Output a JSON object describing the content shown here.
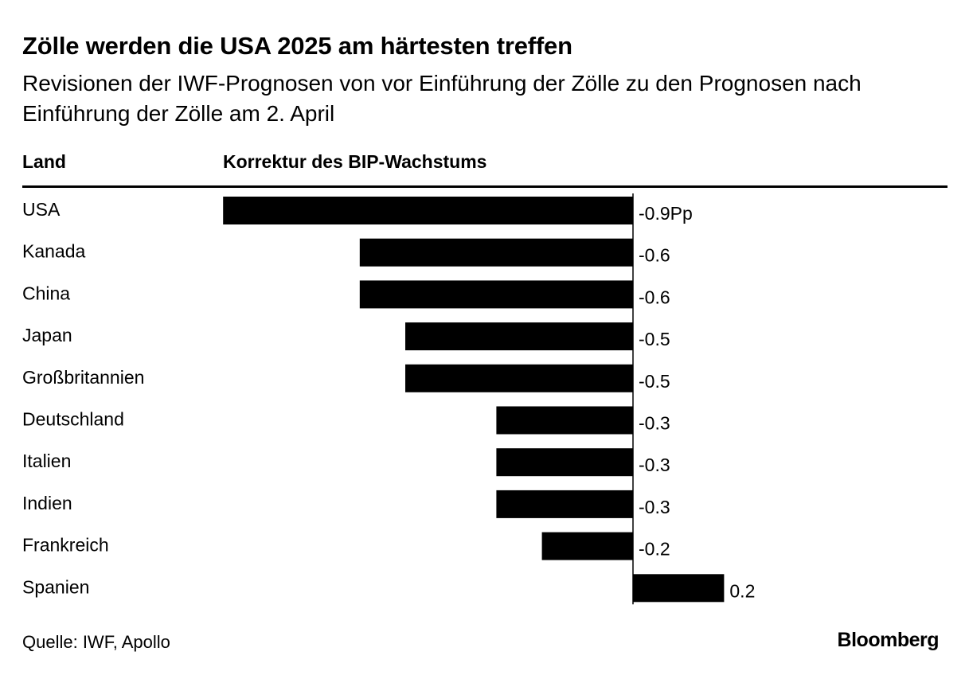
{
  "title": "Zölle werden die USA 2025 am härtesten treffen",
  "subtitle": "Revisionen der IWF-Prognosen von vor Einführung der Zölle zu den Prognosen nach Einführung der Zölle am 2. April",
  "column_headers": {
    "land": "Land",
    "value": "Korrektur des BIP-Wachstums"
  },
  "source": "Quelle: IWF, Apollo",
  "brand": "Bloomberg",
  "chart_data": {
    "type": "bar",
    "orientation": "horizontal",
    "title": "Zölle werden die USA 2025 am härtesten treffen",
    "subtitle": "Revisionen der IWF-Prognosen von vor Einführung der Zölle zu den Prognosen nach Einführung der Zölle am 2. April",
    "category_header": "Land",
    "value_header": "Korrektur des BIP-Wachstums",
    "unit": "Pp",
    "categories": [
      "USA",
      "Kanada",
      "China",
      "Japan",
      "Großbritannien",
      "Deutschland",
      "Italien",
      "Indien",
      "Frankreich",
      "Spanien"
    ],
    "values": [
      -0.9,
      -0.6,
      -0.6,
      -0.5,
      -0.5,
      -0.3,
      -0.3,
      -0.3,
      -0.2,
      0.2
    ],
    "value_labels": [
      "-0.9Pp",
      "-0.6",
      "-0.6",
      "-0.5",
      "-0.5",
      "-0.3",
      "-0.3",
      "-0.3",
      "-0.2",
      "0.2"
    ],
    "bar_color": "#000000",
    "zero_line": true,
    "grid": false,
    "legend": "none"
  }
}
